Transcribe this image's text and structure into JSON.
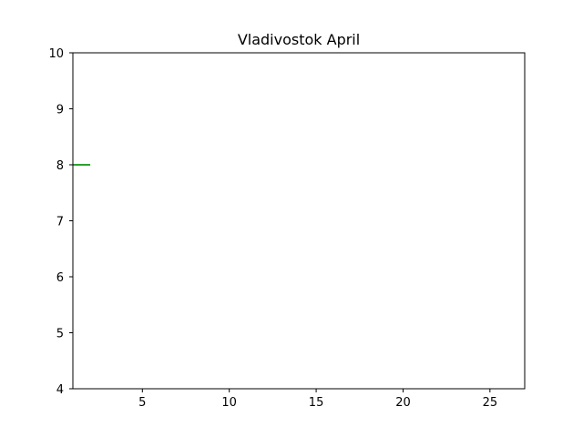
{
  "chart_data": {
    "type": "line",
    "title": "Vladivostok April",
    "xlabel": "",
    "ylabel": "",
    "xlim": [
      1,
      27
    ],
    "ylim": [
      4,
      10
    ],
    "xticks": [
      5,
      10,
      15,
      20,
      25
    ],
    "yticks": [
      4,
      5,
      6,
      7,
      8,
      9,
      10
    ],
    "grid": false,
    "series": [
      {
        "x": [
          1,
          2
        ],
        "y": [
          8,
          8
        ],
        "color": "#2ca02c"
      }
    ]
  }
}
